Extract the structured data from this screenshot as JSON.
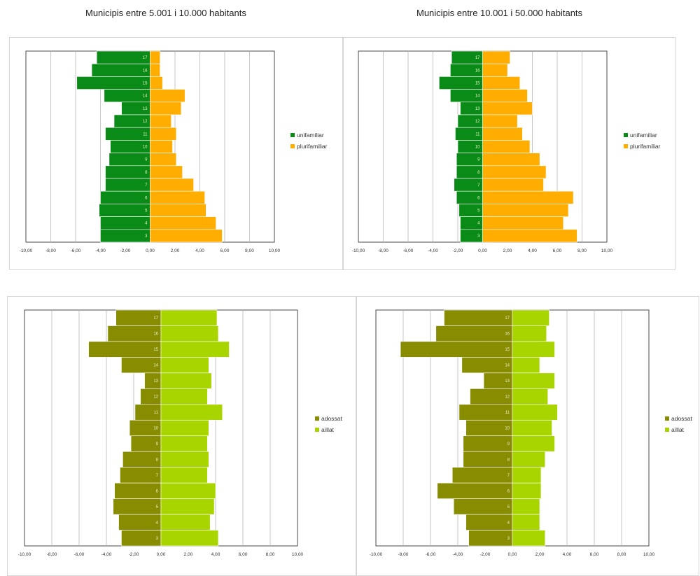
{
  "titles": {
    "left": "Municipis entre 5.001 i 10.000 habitants",
    "right": "Municipis entre 10.001 i 50.000 habitants"
  },
  "chart_data": [
    {
      "id": "tl",
      "type": "bar",
      "orientation": "horizontal-pyramid",
      "xlim": [
        -10,
        10
      ],
      "xticks": [
        "-10,00",
        "-8,00",
        "-6,00",
        "-4,00",
        "-2,00",
        "0,00",
        "2,00",
        "4,00",
        "6,00",
        "8,00",
        "10,00"
      ],
      "categories": [
        "17",
        "16",
        "15",
        "14",
        "13",
        "12",
        "11",
        "10",
        "9",
        "8",
        "7",
        "6",
        "5",
        "4",
        "3"
      ],
      "series": [
        {
          "name": "unifamiliar",
          "color": "#0a8a16",
          "values": [
            -4.3,
            -4.7,
            -5.9,
            -3.7,
            -2.3,
            -2.9,
            -3.6,
            -3.2,
            -3.3,
            -3.6,
            -3.6,
            -4.0,
            -4.1,
            -4.0,
            -4.0
          ]
        },
        {
          "name": "plurifamiliar",
          "color": "#ffad00",
          "values": [
            0.8,
            0.8,
            1.0,
            2.8,
            2.5,
            1.7,
            2.1,
            1.8,
            2.1,
            2.6,
            3.5,
            4.4,
            4.5,
            5.3,
            5.8
          ]
        }
      ],
      "legend": "right"
    },
    {
      "id": "tr",
      "type": "bar",
      "orientation": "horizontal-pyramid",
      "xlim": [
        -10,
        10
      ],
      "xticks": [
        "-10,00",
        "-8,00",
        "-6,00",
        "-4,00",
        "-2,00",
        "0,00",
        "2,00",
        "4,00",
        "6,00",
        "8,00",
        "10,00"
      ],
      "categories": [
        "17",
        "16",
        "15",
        "14",
        "13",
        "12",
        "11",
        "10",
        "9",
        "8",
        "7",
        "6",
        "5",
        "4",
        "3"
      ],
      "series": [
        {
          "name": "unifamiliar",
          "color": "#0a8a16",
          "values": [
            -2.5,
            -2.6,
            -3.5,
            -2.6,
            -1.8,
            -2.0,
            -2.2,
            -2.0,
            -2.1,
            -2.1,
            -2.3,
            -2.1,
            -1.9,
            -1.8,
            -1.8
          ]
        },
        {
          "name": "plurifamiliar",
          "color": "#ffad00",
          "values": [
            2.2,
            2.0,
            3.0,
            3.6,
            4.0,
            2.8,
            3.2,
            3.8,
            4.6,
            5.1,
            4.9,
            7.3,
            6.9,
            6.5,
            7.6
          ]
        }
      ],
      "legend": "right"
    },
    {
      "id": "bl",
      "type": "bar",
      "orientation": "horizontal-pyramid",
      "xlim": [
        -10,
        10
      ],
      "xticks": [
        "-10,00",
        "-8,00",
        "-6,00",
        "-4,00",
        "-2,00",
        "0,00",
        "2,00",
        "4,00",
        "6,00",
        "8,00",
        "10,00"
      ],
      "categories": [
        "17",
        "16",
        "15",
        "14",
        "13",
        "12",
        "11",
        "10",
        "9",
        "8",
        "7",
        "6",
        "5",
        "4",
        "3"
      ],
      "series": [
        {
          "name": "adossat",
          "color": "#888c00",
          "values": [
            -3.3,
            -3.9,
            -5.3,
            -2.9,
            -1.2,
            -1.5,
            -1.9,
            -2.3,
            -2.2,
            -2.8,
            -3.0,
            -3.4,
            -3.5,
            -3.1,
            -2.9
          ]
        },
        {
          "name": "aïllat",
          "color": "#a8d400",
          "values": [
            4.1,
            4.2,
            5.0,
            3.5,
            3.7,
            3.4,
            4.5,
            3.5,
            3.4,
            3.5,
            3.4,
            4.0,
            3.9,
            3.6,
            4.2
          ]
        }
      ],
      "legend": "right"
    },
    {
      "id": "br",
      "type": "bar",
      "orientation": "horizontal-pyramid",
      "xlim": [
        -10,
        10
      ],
      "xticks": [
        "-10,00",
        "-8,00",
        "-6,00",
        "-4,00",
        "-2,00",
        "0,00",
        "2,00",
        "4,00",
        "6,00",
        "8,00",
        "10,00"
      ],
      "categories": [
        "17",
        "16",
        "15",
        "14",
        "13",
        "12",
        "11",
        "10",
        "9",
        "8",
        "7",
        "6",
        "5",
        "4",
        "3"
      ],
      "series": [
        {
          "name": "adossat",
          "color": "#888c00",
          "values": [
            -5.0,
            -5.6,
            -8.2,
            -3.7,
            -2.1,
            -3.1,
            -3.9,
            -3.4,
            -3.6,
            -3.6,
            -4.4,
            -5.5,
            -4.3,
            -3.4,
            -3.2
          ]
        },
        {
          "name": "aïllat",
          "color": "#a8d400",
          "values": [
            2.7,
            2.5,
            3.1,
            2.0,
            3.1,
            2.6,
            3.3,
            2.9,
            3.1,
            2.4,
            2.1,
            2.1,
            2.0,
            2.0,
            2.4
          ]
        }
      ],
      "legend": "right"
    }
  ]
}
